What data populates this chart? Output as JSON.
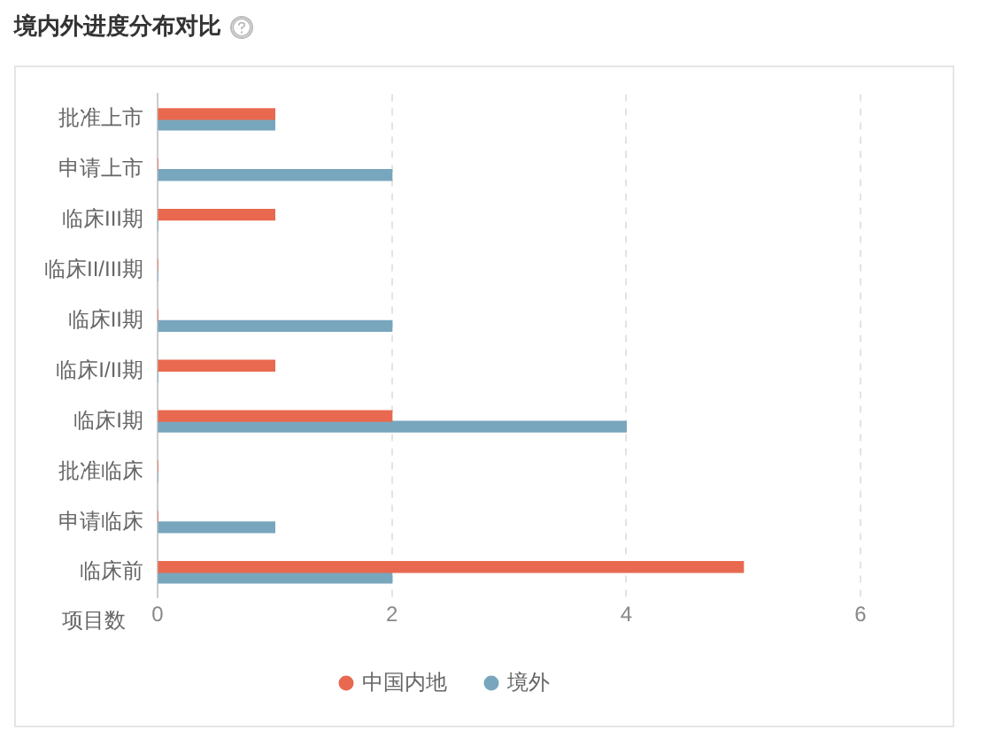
{
  "chart_data": {
    "type": "bar",
    "orientation": "horizontal",
    "title": "境内外进度分布对比",
    "xlabel": "项目数",
    "categories": [
      "批准上市",
      "申请上市",
      "临床III期",
      "临床II/III期",
      "临床II期",
      "临床I/II期",
      "临床I期",
      "批准临床",
      "申请临床",
      "临床前"
    ],
    "series": [
      {
        "name": "中国内地",
        "color": "#e8694f",
        "values": [
          1,
          0,
          1,
          0,
          0,
          1,
          2,
          0,
          0,
          5
        ]
      },
      {
        "name": "境外",
        "color": "#78a6bd",
        "values": [
          1,
          2,
          0,
          0,
          2,
          0,
          4,
          0,
          1,
          2
        ]
      }
    ],
    "xlim": [
      0,
      6
    ],
    "xticks": [
      0,
      2,
      4,
      6
    ],
    "grid": "x",
    "legend": "bottom"
  }
}
